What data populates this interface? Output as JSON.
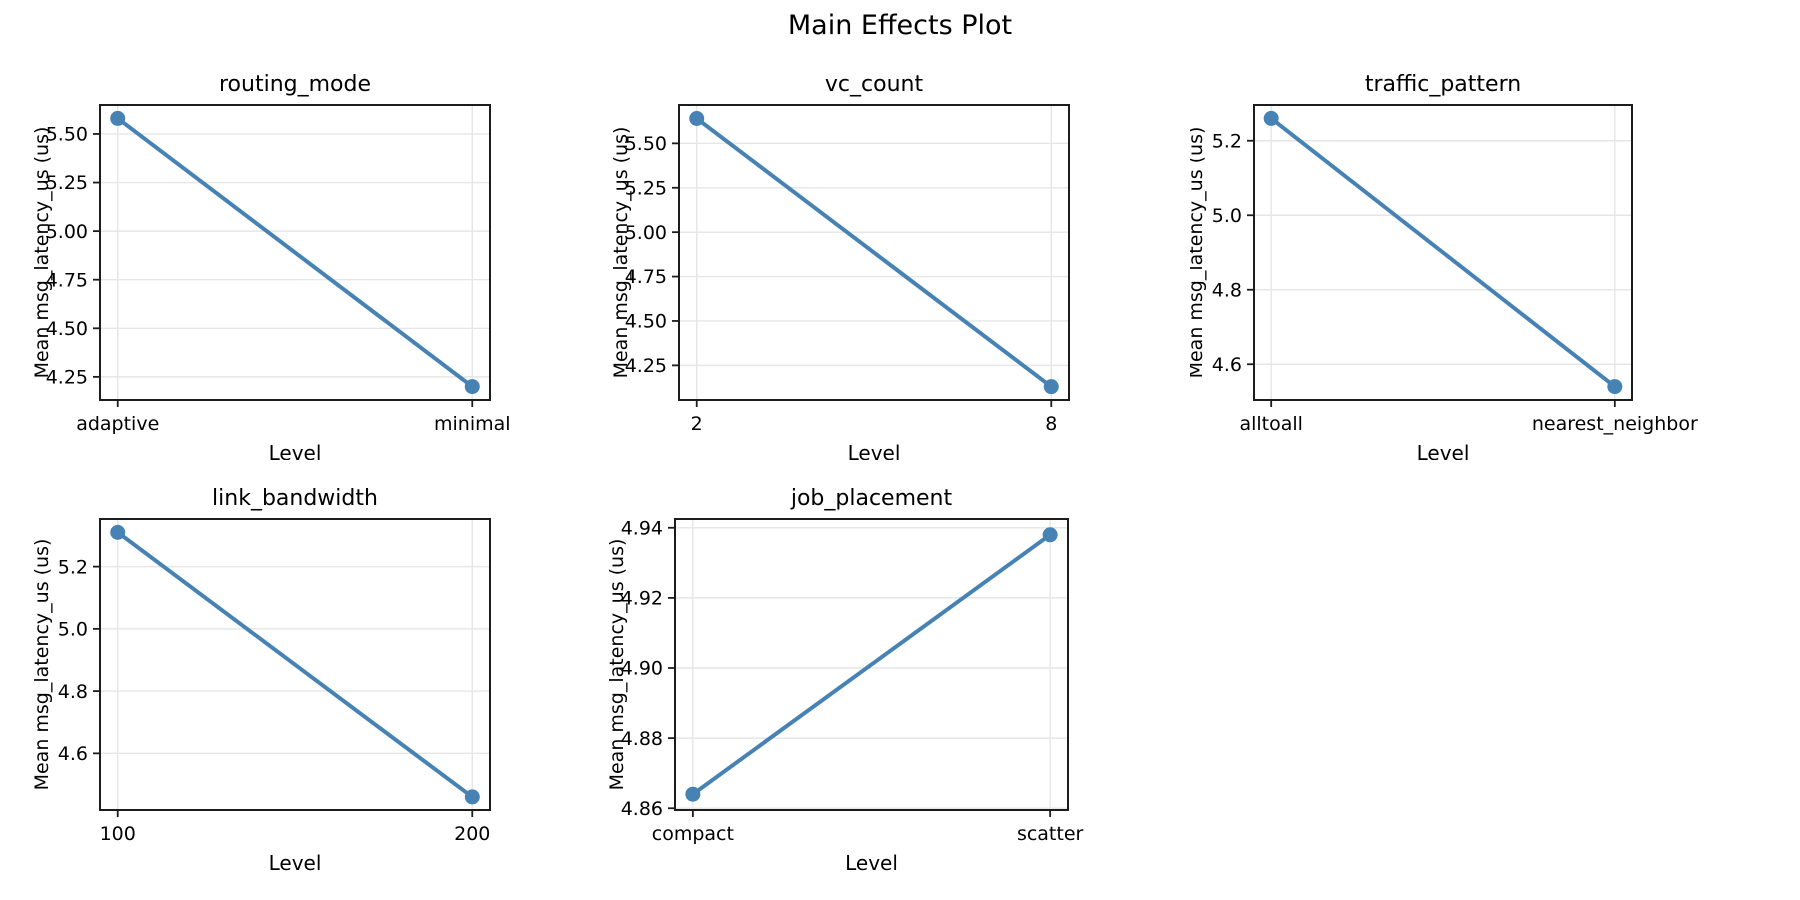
{
  "figure": {
    "title": "Main Effects Plot",
    "colors": {
      "line": "#4682b4",
      "marker": "#4682b4",
      "grid": "#e6e6e6",
      "spine": "#1c1c1c",
      "tick": "#1c1c1c",
      "text": "#000000",
      "background": "#ffffff"
    }
  },
  "chart_data": [
    {
      "type": "line",
      "title": "routing_mode",
      "xlabel": "Level",
      "ylabel": "Mean msg_latency_us (us)",
      "categories": [
        "adaptive",
        "minimal"
      ],
      "values": [
        5.58,
        4.2
      ],
      "yticks": [
        4.25,
        4.5,
        4.75,
        5.0,
        5.25,
        5.5
      ],
      "ytick_labels": [
        "4.25",
        "4.50",
        "4.75",
        "5.00",
        "5.25",
        "5.50"
      ],
      "ylim": [
        4.131,
        5.649
      ],
      "grid": true,
      "legend": "none"
    },
    {
      "type": "line",
      "title": "vc_count",
      "xlabel": "Level",
      "ylabel": "Mean msg_latency_us (us)",
      "categories": [
        "2",
        "8"
      ],
      "values": [
        5.64,
        4.13
      ],
      "yticks": [
        4.25,
        4.5,
        4.75,
        5.0,
        5.25,
        5.5
      ],
      "ytick_labels": [
        "4.25",
        "4.50",
        "4.75",
        "5.00",
        "5.25",
        "5.50"
      ],
      "ylim": [
        4.055,
        5.716
      ],
      "grid": true,
      "legend": "none"
    },
    {
      "type": "line",
      "title": "traffic_pattern",
      "xlabel": "Level",
      "ylabel": "Mean msg_latency_us (us)",
      "categories": [
        "alltoall",
        "nearest_neighbor"
      ],
      "values": [
        5.26,
        4.54
      ],
      "yticks": [
        4.6,
        4.8,
        5.0,
        5.2
      ],
      "ytick_labels": [
        "4.6",
        "4.8",
        "5.0",
        "5.2"
      ],
      "ylim": [
        4.504,
        5.296
      ],
      "grid": true,
      "legend": "none"
    },
    {
      "type": "line",
      "title": "link_bandwidth",
      "xlabel": "Level",
      "ylabel": "Mean msg_latency_us (us)",
      "categories": [
        "100",
        "200"
      ],
      "values": [
        5.31,
        4.46
      ],
      "yticks": [
        4.6,
        4.8,
        5.0,
        5.2
      ],
      "ytick_labels": [
        "4.6",
        "4.8",
        "5.0",
        "5.2"
      ],
      "ylim": [
        4.418,
        5.353
      ],
      "grid": true,
      "legend": "none"
    },
    {
      "type": "line",
      "title": "job_placement",
      "xlabel": "Level",
      "ylabel": "Mean msg_latency_us (us)",
      "categories": [
        "compact",
        "scatter"
      ],
      "values": [
        4.864,
        4.938
      ],
      "yticks": [
        4.86,
        4.88,
        4.9,
        4.92,
        4.94
      ],
      "ytick_labels": [
        "4.86",
        "4.88",
        "4.90",
        "4.92",
        "4.94"
      ],
      "ylim": [
        4.8595,
        4.9425
      ],
      "grid": true,
      "legend": "none"
    }
  ]
}
